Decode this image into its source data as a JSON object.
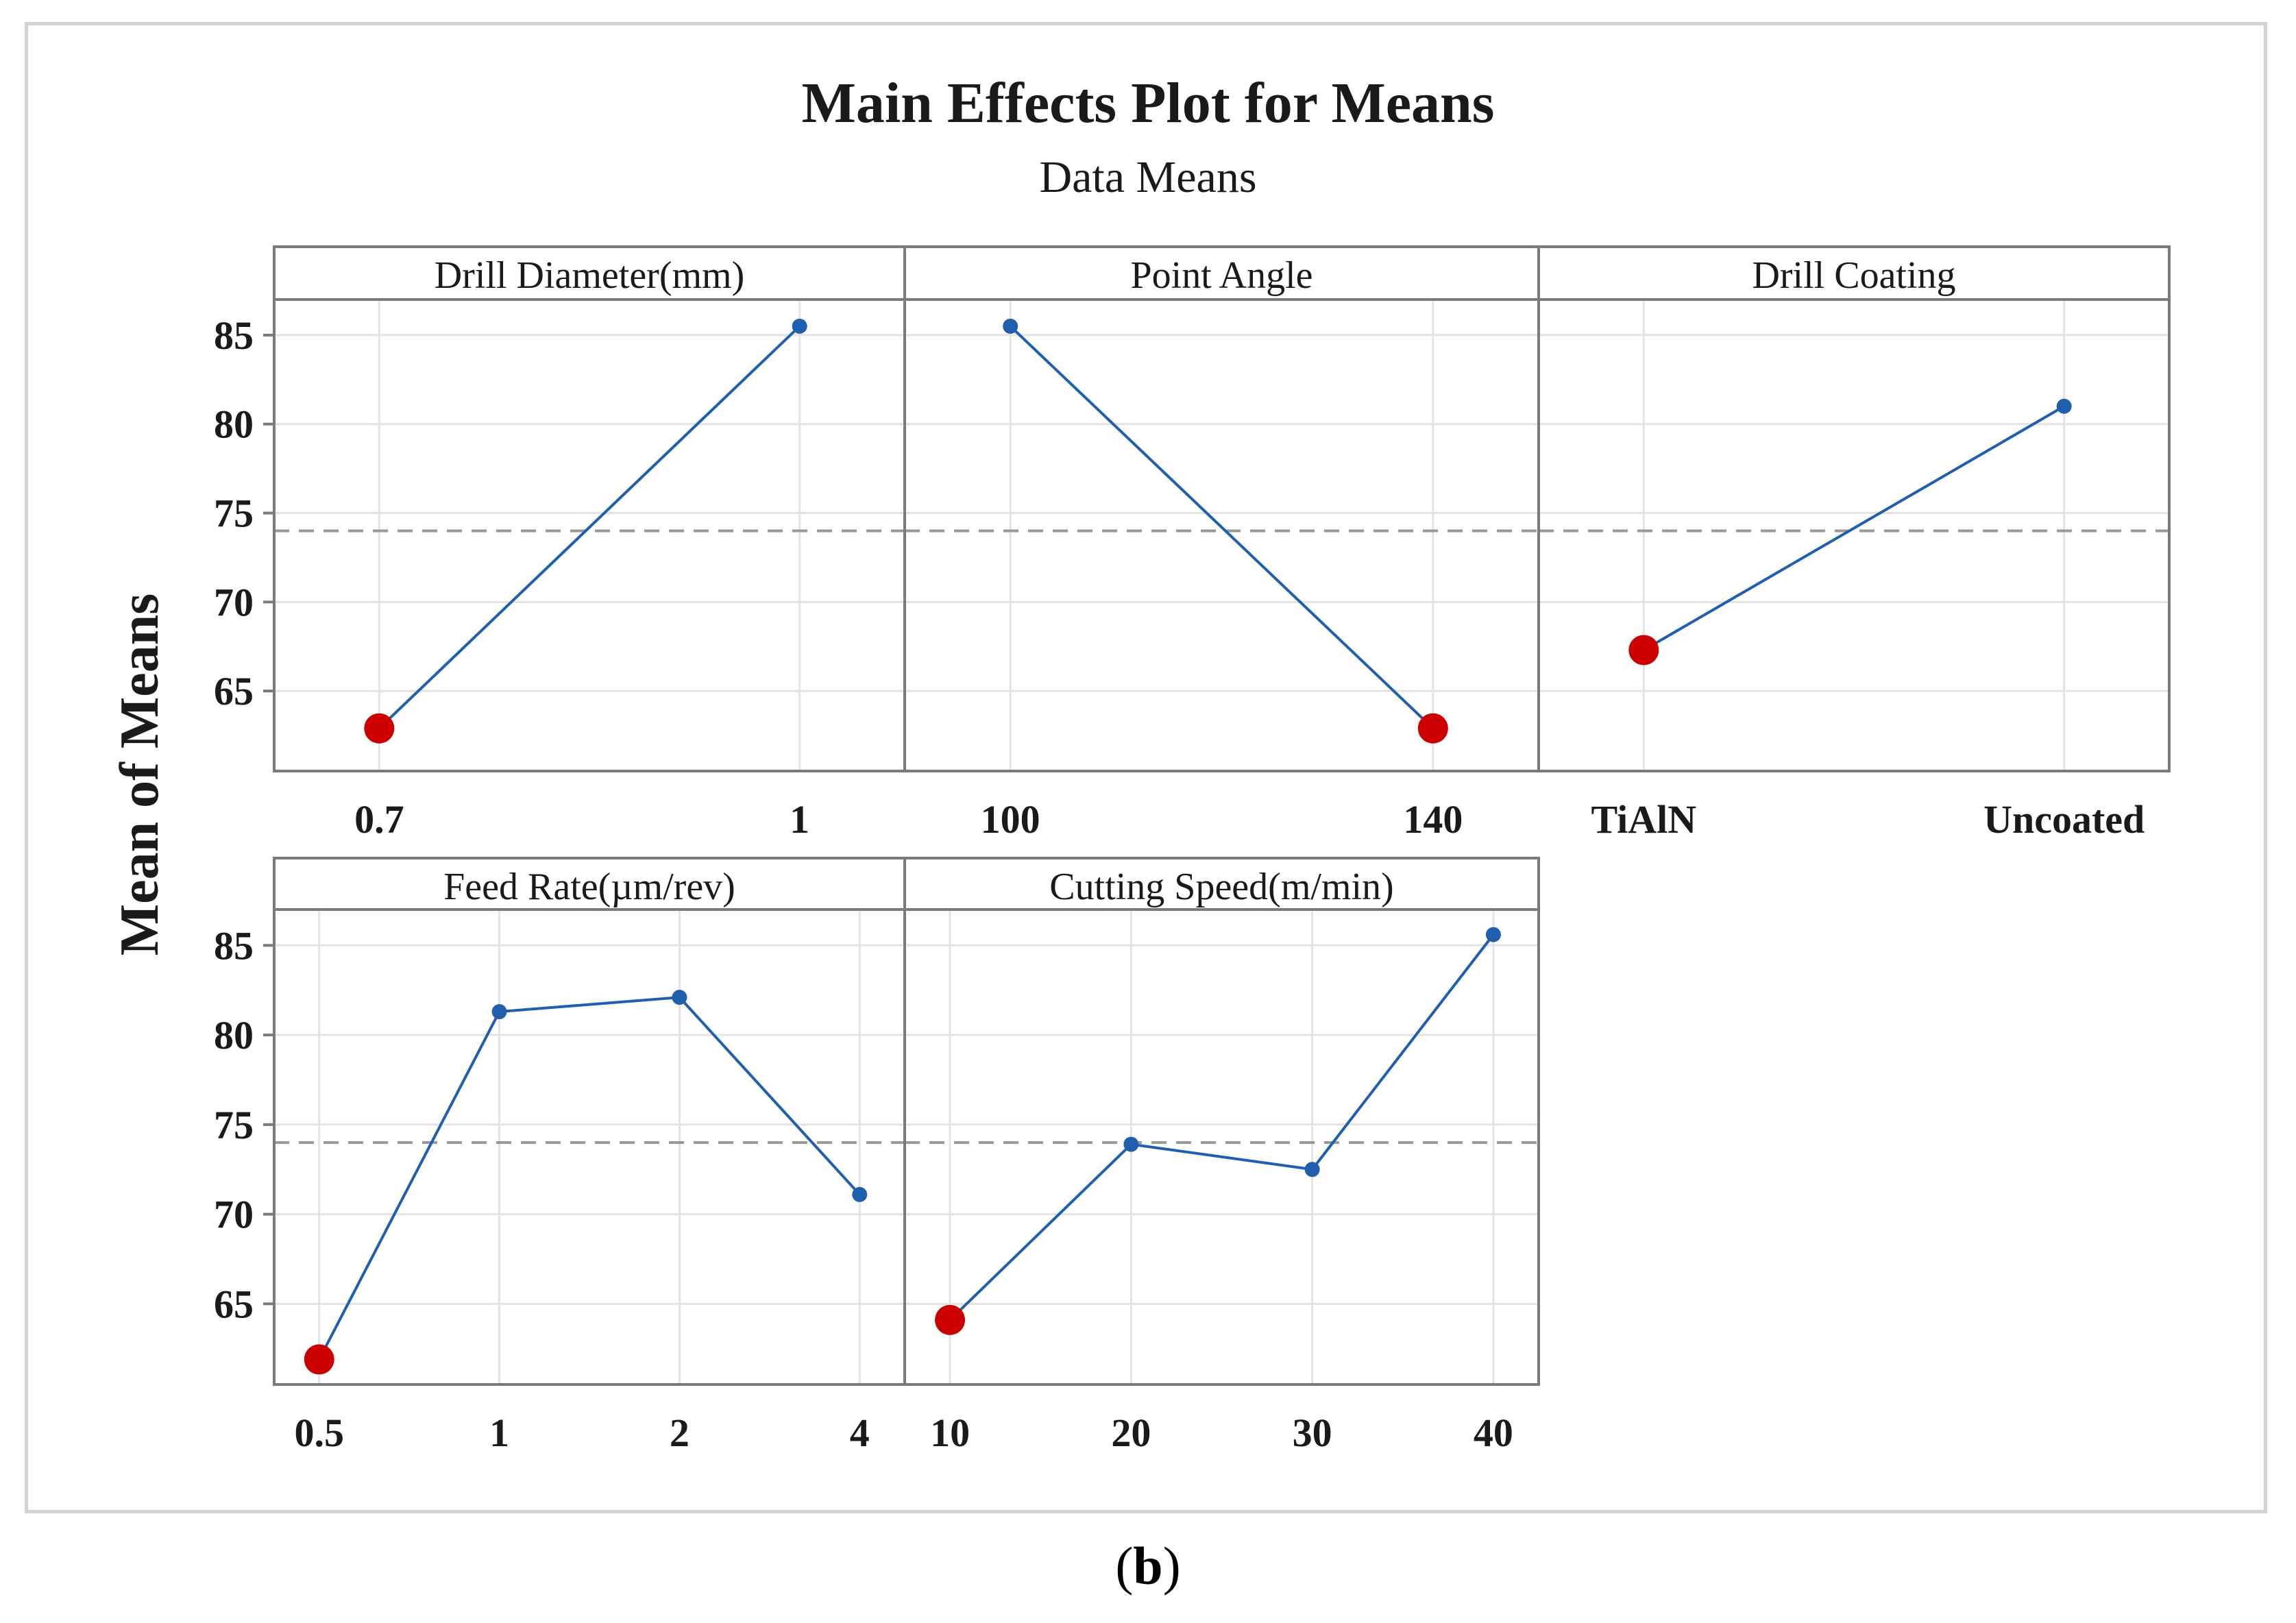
{
  "chart_data": {
    "type": "line",
    "title": "Main Effects Plot for Means",
    "subtitle": "Data Means",
    "ylabel": "Mean of Means",
    "ylim": [
      60.5,
      87
    ],
    "yticks": [
      65,
      70,
      75,
      80,
      85
    ],
    "overall_mean": 74,
    "grid": true,
    "panels": [
      {
        "name": "Drill Diameter(mm)",
        "categories": [
          "0.7",
          "1"
        ],
        "values": [
          62.9,
          85.5
        ],
        "min_index": 0
      },
      {
        "name": "Point Angle",
        "categories": [
          "100",
          "140"
        ],
        "values": [
          85.5,
          62.9
        ],
        "min_index": 1
      },
      {
        "name": "Drill Coating",
        "categories": [
          "TiAlN",
          "Uncoated"
        ],
        "values": [
          67.3,
          81.0
        ],
        "min_index": 0
      },
      {
        "name": "Feed Rate(µm/rev)",
        "categories": [
          "0.5",
          "1",
          "2",
          "4"
        ],
        "values": [
          61.9,
          81.3,
          82.1,
          71.1
        ],
        "min_index": 0
      },
      {
        "name": "Cutting Speed(m/min)",
        "categories": [
          "10",
          "20",
          "30",
          "40"
        ],
        "values": [
          64.1,
          73.9,
          72.5,
          85.6
        ],
        "min_index": 0
      }
    ],
    "colors": {
      "line": "#1f5fae",
      "min_marker": "#cc0000",
      "mean_line": "#999999",
      "grid": "#e3e3e3",
      "frame": "#7a7a7a"
    }
  },
  "caption": {
    "open": "(",
    "label": "b",
    "close": ")"
  }
}
